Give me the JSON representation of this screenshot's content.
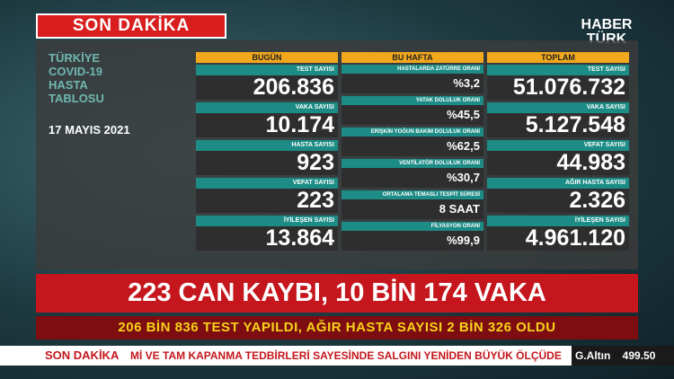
{
  "banner": {
    "label": "SON DAKİKA"
  },
  "logo": {
    "line1": "HABER",
    "line2": "TÜRK"
  },
  "tablo": {
    "title": [
      "TÜRKİYE",
      "COVID-19",
      "HASTA",
      "TABLOSU"
    ],
    "date": "17 MAYIS 2021",
    "columns": [
      {
        "header": "BUGÜN",
        "rows": [
          {
            "label": "TEST SAYISI",
            "value": "206.836"
          },
          {
            "label": "VAKA SAYISI",
            "value": "10.174"
          },
          {
            "label": "HASTA SAYISI",
            "value": "923"
          },
          {
            "label": "VEFAT SAYISI",
            "value": "223"
          },
          {
            "label": "İYİLEŞEN SAYISI",
            "value": "13.864"
          }
        ]
      },
      {
        "header": "BU HAFTA",
        "rows": [
          {
            "label": "HASTALARDA ZATÜRRE ORANI",
            "value": "%3,2"
          },
          {
            "label": "YATAK DOLULUK ORANI",
            "value": "%45,5"
          },
          {
            "label": "ERİŞKİN YOĞUN BAKIM DOLULUK ORANI",
            "value": "%62,5"
          },
          {
            "label": "VENTİLATÖR DOLULUK ORANI",
            "value": "%30,7"
          },
          {
            "label": "ORTALAMA TEMASLI TESPİT SÜRESİ",
            "value": "8 SAAT"
          },
          {
            "label": "FİLYASYON ORANI",
            "value": "%99,9"
          }
        ]
      },
      {
        "header": "TOPLAM",
        "rows": [
          {
            "label": "TEST SAYISI",
            "value": "51.076.732"
          },
          {
            "label": "VAKA SAYISI",
            "value": "5.127.548"
          },
          {
            "label": "VEFAT SAYISI",
            "value": "44.983"
          },
          {
            "label": "AĞIR HASTA SAYISI",
            "value": "2.326"
          },
          {
            "label": "İYİLEŞEN SAYISI",
            "value": "4.961.120"
          }
        ]
      }
    ]
  },
  "headline": "223 CAN KAYBI, 10 BİN 174 VAKA",
  "subheadline": "206 BİN 836 TEST YAPILDI, AĞIR HASTA SAYISI 2 BİN 326 OLDU",
  "ticker": {
    "label": "SON DAKİKA",
    "text": "Mİ VE TAM KAPANMA TEDBİRLERİ SAYESİNDE SALGINI YENİDEN BÜYÜK ÖLÇÜDE",
    "market_name": "G.Altın",
    "market_value": "499.50"
  }
}
